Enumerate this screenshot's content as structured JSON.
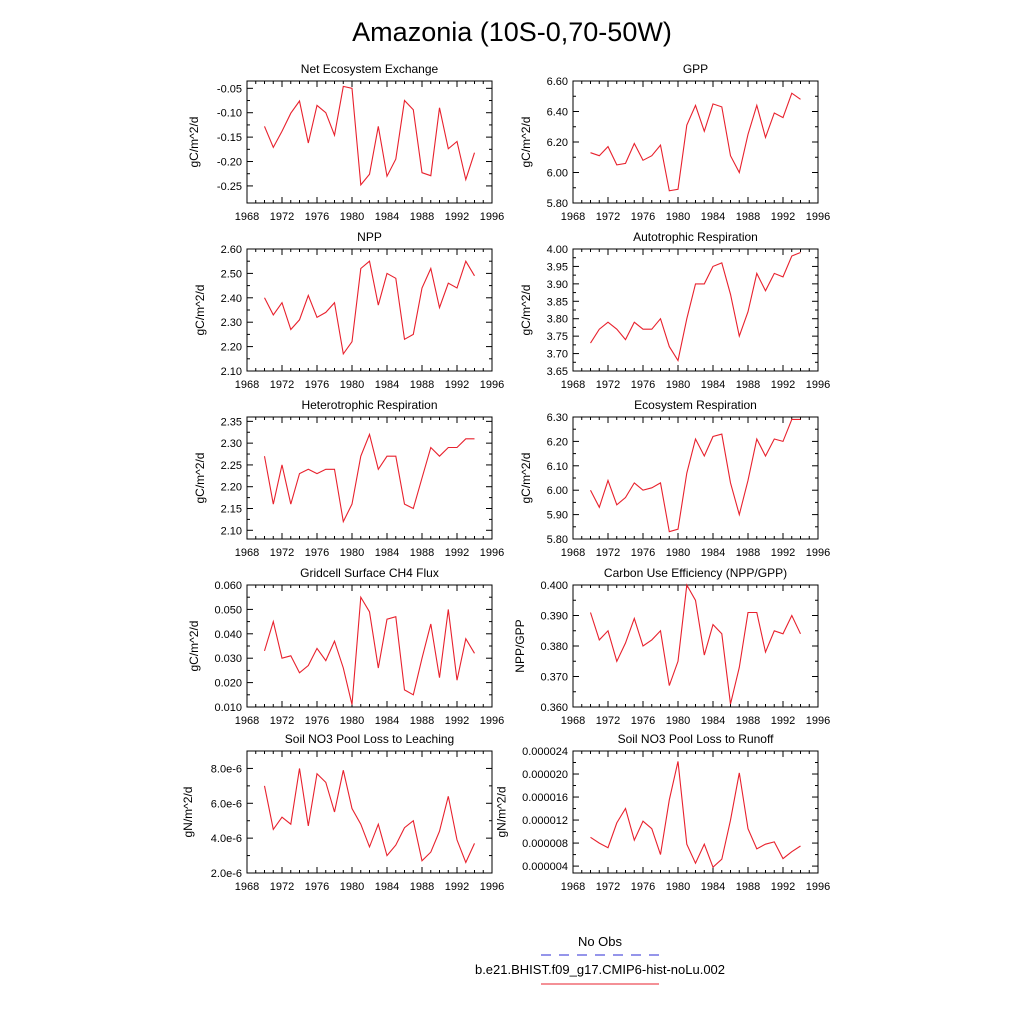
{
  "title": "Amazonia (10S-0,70-50W)",
  "series_color": "#e8212d",
  "obs_color": "#2b2bd6",
  "legend": {
    "obs_label": "No Obs",
    "model_label": "b.e21.BHIST.f09_g17.CMIP6-hist-noLu.002"
  },
  "chart_data": [
    {
      "type": "line",
      "title": "Net Ecosystem Exchange",
      "ylabel": "gC/m^2/d",
      "xlim": [
        1968,
        1996
      ],
      "xticks": [
        1968,
        1972,
        1976,
        1980,
        1984,
        1988,
        1992,
        1996
      ],
      "xtick_labels": [
        "1968",
        "1972",
        "1976",
        "1980",
        "1984",
        "1988",
        "1992",
        "1996"
      ],
      "ylim": [
        -0.285,
        -0.035
      ],
      "yticks": [
        -0.25,
        -0.2,
        -0.15,
        -0.1,
        -0.05
      ],
      "ytick_labels": [
        "-0.25",
        "-0.20",
        "-0.15",
        "-0.10",
        "-0.05"
      ],
      "x": [
        1970,
        1971,
        1972,
        1973,
        1974,
        1975,
        1976,
        1977,
        1978,
        1979,
        1980,
        1981,
        1982,
        1983,
        1984,
        1985,
        1986,
        1987,
        1988,
        1989,
        1990,
        1991,
        1992,
        1993,
        1994
      ],
      "values": [
        -0.128,
        -0.171,
        -0.138,
        -0.101,
        -0.076,
        -0.162,
        -0.085,
        -0.1,
        -0.146,
        -0.046,
        -0.05,
        -0.248,
        -0.226,
        -0.128,
        -0.23,
        -0.195,
        -0.075,
        -0.094,
        -0.223,
        -0.229,
        -0.09,
        -0.174,
        -0.159,
        -0.237,
        -0.182
      ]
    },
    {
      "type": "line",
      "title": "GPP",
      "ylabel": "gC/m^2/d",
      "xlim": [
        1968,
        1996
      ],
      "xticks": [
        1968,
        1972,
        1976,
        1980,
        1984,
        1988,
        1992,
        1996
      ],
      "xtick_labels": [
        "1968",
        "1972",
        "1976",
        "1980",
        "1984",
        "1988",
        "1992",
        "1996"
      ],
      "ylim": [
        5.8,
        6.6
      ],
      "yticks": [
        5.8,
        6.0,
        6.2,
        6.4,
        6.6
      ],
      "ytick_labels": [
        "5.80",
        "6.00",
        "6.20",
        "6.40",
        "6.60"
      ],
      "x": [
        1970,
        1971,
        1972,
        1973,
        1974,
        1975,
        1976,
        1977,
        1978,
        1979,
        1980,
        1981,
        1982,
        1983,
        1984,
        1985,
        1986,
        1987,
        1988,
        1989,
        1990,
        1991,
        1992,
        1993,
        1994
      ],
      "values": [
        6.13,
        6.11,
        6.17,
        6.05,
        6.06,
        6.19,
        6.08,
        6.11,
        6.18,
        5.88,
        5.89,
        6.31,
        6.44,
        6.27,
        6.45,
        6.43,
        6.11,
        6.0,
        6.25,
        6.44,
        6.23,
        6.39,
        6.36,
        6.52,
        6.48
      ]
    },
    {
      "type": "line",
      "title": "NPP",
      "ylabel": "gC/m^2/d",
      "xlim": [
        1968,
        1996
      ],
      "xticks": [
        1968,
        1972,
        1976,
        1980,
        1984,
        1988,
        1992,
        1996
      ],
      "xtick_labels": [
        "1968",
        "1972",
        "1976",
        "1980",
        "1984",
        "1988",
        "1992",
        "1996"
      ],
      "ylim": [
        2.1,
        2.6
      ],
      "yticks": [
        2.1,
        2.2,
        2.3,
        2.4,
        2.5,
        2.6
      ],
      "ytick_labels": [
        "2.10",
        "2.20",
        "2.30",
        "2.40",
        "2.50",
        "2.60"
      ],
      "x": [
        1970,
        1971,
        1972,
        1973,
        1974,
        1975,
        1976,
        1977,
        1978,
        1979,
        1980,
        1981,
        1982,
        1983,
        1984,
        1985,
        1986,
        1987,
        1988,
        1989,
        1990,
        1991,
        1992,
        1993,
        1994
      ],
      "values": [
        2.4,
        2.33,
        2.38,
        2.27,
        2.31,
        2.41,
        2.32,
        2.34,
        2.38,
        2.17,
        2.22,
        2.52,
        2.55,
        2.37,
        2.5,
        2.48,
        2.23,
        2.25,
        2.44,
        2.52,
        2.36,
        2.46,
        2.44,
        2.55,
        2.49
      ]
    },
    {
      "type": "line",
      "title": "Autotrophic Respiration",
      "ylabel": "gC/m^2/d",
      "xlim": [
        1968,
        1996
      ],
      "xticks": [
        1968,
        1972,
        1976,
        1980,
        1984,
        1988,
        1992,
        1996
      ],
      "xtick_labels": [
        "1968",
        "1972",
        "1976",
        "1980",
        "1984",
        "1988",
        "1992",
        "1996"
      ],
      "ylim": [
        3.65,
        4.0
      ],
      "yticks": [
        3.65,
        3.7,
        3.75,
        3.8,
        3.85,
        3.9,
        3.95,
        4.0
      ],
      "ytick_labels": [
        "3.65",
        "3.70",
        "3.75",
        "3.80",
        "3.85",
        "3.90",
        "3.95",
        "4.00"
      ],
      "x": [
        1970,
        1971,
        1972,
        1973,
        1974,
        1975,
        1976,
        1977,
        1978,
        1979,
        1980,
        1981,
        1982,
        1983,
        1984,
        1985,
        1986,
        1987,
        1988,
        1989,
        1990,
        1991,
        1992,
        1993,
        1994
      ],
      "values": [
        3.73,
        3.77,
        3.79,
        3.77,
        3.74,
        3.79,
        3.77,
        3.77,
        3.8,
        3.72,
        3.68,
        3.8,
        3.9,
        3.9,
        3.95,
        3.96,
        3.87,
        3.75,
        3.82,
        3.93,
        3.88,
        3.93,
        3.92,
        3.98,
        3.99
      ]
    },
    {
      "type": "line",
      "title": "Heterotrophic Respiration",
      "ylabel": "gC/m^2/d",
      "xlim": [
        1968,
        1996
      ],
      "xticks": [
        1968,
        1972,
        1976,
        1980,
        1984,
        1988,
        1992,
        1996
      ],
      "xtick_labels": [
        "1968",
        "1972",
        "1976",
        "1980",
        "1984",
        "1988",
        "1992",
        "1996"
      ],
      "ylim": [
        2.08,
        2.36
      ],
      "yticks": [
        2.1,
        2.15,
        2.2,
        2.25,
        2.3,
        2.35
      ],
      "ytick_labels": [
        "2.10",
        "2.15",
        "2.20",
        "2.25",
        "2.30",
        "2.35"
      ],
      "x": [
        1970,
        1971,
        1972,
        1973,
        1974,
        1975,
        1976,
        1977,
        1978,
        1979,
        1980,
        1981,
        1982,
        1983,
        1984,
        1985,
        1986,
        1987,
        1988,
        1989,
        1990,
        1991,
        1992,
        1993,
        1994
      ],
      "values": [
        2.27,
        2.16,
        2.25,
        2.16,
        2.23,
        2.24,
        2.23,
        2.24,
        2.24,
        2.12,
        2.16,
        2.27,
        2.32,
        2.24,
        2.27,
        2.27,
        2.16,
        2.15,
        2.22,
        2.29,
        2.27,
        2.29,
        2.29,
        2.31,
        2.31
      ]
    },
    {
      "type": "line",
      "title": "Ecosystem Respiration",
      "ylabel": "gC/m^2/d",
      "xlim": [
        1968,
        1996
      ],
      "xticks": [
        1968,
        1972,
        1976,
        1980,
        1984,
        1988,
        1992,
        1996
      ],
      "xtick_labels": [
        "1968",
        "1972",
        "1976",
        "1980",
        "1984",
        "1988",
        "1992",
        "1996"
      ],
      "ylim": [
        5.8,
        6.3
      ],
      "yticks": [
        5.8,
        5.9,
        6.0,
        6.1,
        6.2,
        6.3
      ],
      "ytick_labels": [
        "5.80",
        "5.90",
        "6.00",
        "6.10",
        "6.20",
        "6.30"
      ],
      "x": [
        1970,
        1971,
        1972,
        1973,
        1974,
        1975,
        1976,
        1977,
        1978,
        1979,
        1980,
        1981,
        1982,
        1983,
        1984,
        1985,
        1986,
        1987,
        1988,
        1989,
        1990,
        1991,
        1992,
        1993,
        1994
      ],
      "values": [
        6.0,
        5.93,
        6.04,
        5.94,
        5.97,
        6.03,
        6.0,
        6.01,
        6.03,
        5.83,
        5.84,
        6.07,
        6.21,
        6.14,
        6.22,
        6.23,
        6.03,
        5.9,
        6.04,
        6.21,
        6.14,
        6.21,
        6.2,
        6.29,
        6.29
      ]
    },
    {
      "type": "line",
      "title": "Gridcell Surface CH4 Flux",
      "ylabel": "gC/m^2/d",
      "xlim": [
        1968,
        1996
      ],
      "xticks": [
        1968,
        1972,
        1976,
        1980,
        1984,
        1988,
        1992,
        1996
      ],
      "xtick_labels": [
        "1968",
        "1972",
        "1976",
        "1980",
        "1984",
        "1988",
        "1992",
        "1996"
      ],
      "ylim": [
        0.01,
        0.06
      ],
      "yticks": [
        0.01,
        0.02,
        0.03,
        0.04,
        0.05,
        0.06
      ],
      "ytick_labels": [
        "0.010",
        "0.020",
        "0.030",
        "0.040",
        "0.050",
        "0.060"
      ],
      "x": [
        1970,
        1971,
        1972,
        1973,
        1974,
        1975,
        1976,
        1977,
        1978,
        1979,
        1980,
        1981,
        1982,
        1983,
        1984,
        1985,
        1986,
        1987,
        1988,
        1989,
        1990,
        1991,
        1992,
        1993,
        1994
      ],
      "values": [
        0.033,
        0.045,
        0.03,
        0.031,
        0.024,
        0.027,
        0.034,
        0.029,
        0.037,
        0.026,
        0.011,
        0.055,
        0.049,
        0.026,
        0.046,
        0.047,
        0.017,
        0.015,
        0.03,
        0.044,
        0.022,
        0.05,
        0.021,
        0.038,
        0.032
      ]
    },
    {
      "type": "line",
      "title": "Carbon Use Efficiency (NPP/GPP)",
      "ylabel": "NPP/GPP",
      "xlim": [
        1968,
        1996
      ],
      "xticks": [
        1968,
        1972,
        1976,
        1980,
        1984,
        1988,
        1992,
        1996
      ],
      "xtick_labels": [
        "1968",
        "1972",
        "1976",
        "1980",
        "1984",
        "1988",
        "1992",
        "1996"
      ],
      "ylim": [
        0.36,
        0.4
      ],
      "yticks": [
        0.36,
        0.37,
        0.38,
        0.39,
        0.4
      ],
      "ytick_labels": [
        "0.360",
        "0.370",
        "0.380",
        "0.390",
        "0.400"
      ],
      "x": [
        1970,
        1971,
        1972,
        1973,
        1974,
        1975,
        1976,
        1977,
        1978,
        1979,
        1980,
        1981,
        1982,
        1983,
        1984,
        1985,
        1986,
        1987,
        1988,
        1989,
        1990,
        1991,
        1992,
        1993,
        1994
      ],
      "values": [
        0.391,
        0.382,
        0.385,
        0.375,
        0.381,
        0.389,
        0.38,
        0.382,
        0.385,
        0.367,
        0.375,
        0.4,
        0.395,
        0.377,
        0.387,
        0.384,
        0.361,
        0.373,
        0.391,
        0.391,
        0.378,
        0.385,
        0.384,
        0.39,
        0.384
      ]
    },
    {
      "type": "line",
      "title": "Soil NO3 Pool Loss to Leaching",
      "ylabel": "gN/m^2/d",
      "xlim": [
        1968,
        1996
      ],
      "xticks": [
        1968,
        1972,
        1976,
        1980,
        1984,
        1988,
        1992,
        1996
      ],
      "xtick_labels": [
        "1968",
        "1972",
        "1976",
        "1980",
        "1984",
        "1988",
        "1992",
        "1996"
      ],
      "ylim": [
        2e-06,
        9e-06
      ],
      "yticks": [
        2e-06,
        4e-06,
        6e-06,
        8e-06
      ],
      "ytick_labels": [
        "2.0e-6",
        "4.0e-6",
        "6.0e-6",
        "8.0e-6"
      ],
      "x": [
        1970,
        1971,
        1972,
        1973,
        1974,
        1975,
        1976,
        1977,
        1978,
        1979,
        1980,
        1981,
        1982,
        1983,
        1984,
        1985,
        1986,
        1987,
        1988,
        1989,
        1990,
        1991,
        1992,
        1993,
        1994
      ],
      "values": [
        7e-06,
        4.5e-06,
        5.2e-06,
        4.8e-06,
        8e-06,
        4.7e-06,
        7.7e-06,
        7.2e-06,
        5.5e-06,
        7.9e-06,
        5.7e-06,
        4.8e-06,
        3.5e-06,
        4.8e-06,
        3e-06,
        3.6e-06,
        4.6e-06,
        5e-06,
        2.7e-06,
        3.2e-06,
        4.4e-06,
        6.4e-06,
        3.9e-06,
        2.6e-06,
        3.7e-06
      ]
    },
    {
      "type": "line",
      "title": "Soil NO3 Pool Loss to Runoff",
      "ylabel": "gN/m^2/d",
      "xlim": [
        1968,
        1996
      ],
      "xticks": [
        1968,
        1972,
        1976,
        1980,
        1984,
        1988,
        1992,
        1996
      ],
      "xtick_labels": [
        "1968",
        "1972",
        "1976",
        "1980",
        "1984",
        "1988",
        "1992",
        "1996"
      ],
      "ylim": [
        2.8e-06,
        2.4e-05
      ],
      "yticks": [
        4e-06,
        8e-06,
        1.2e-05,
        1.6e-05,
        2e-05,
        2.4e-05
      ],
      "ytick_labels": [
        "0.000004",
        "0.000008",
        "0.000012",
        "0.000016",
        "0.000020",
        "0.000024"
      ],
      "x": [
        1970,
        1971,
        1972,
        1973,
        1974,
        1975,
        1976,
        1977,
        1978,
        1979,
        1980,
        1981,
        1982,
        1983,
        1984,
        1985,
        1986,
        1987,
        1988,
        1989,
        1990,
        1991,
        1992,
        1993,
        1994
      ],
      "values": [
        9e-06,
        8e-06,
        7.2e-06,
        1.15e-05,
        1.4e-05,
        8.5e-06,
        1.18e-05,
        1.05e-05,
        6e-06,
        1.55e-05,
        2.22e-05,
        7.8e-06,
        4.5e-06,
        7.8e-06,
        3.8e-06,
        5.2e-06,
        1.2e-05,
        2.02e-05,
        1.05e-05,
        7e-06,
        7.8e-06,
        8.2e-06,
        5.3e-06,
        6.5e-06,
        7.5e-06
      ]
    }
  ]
}
